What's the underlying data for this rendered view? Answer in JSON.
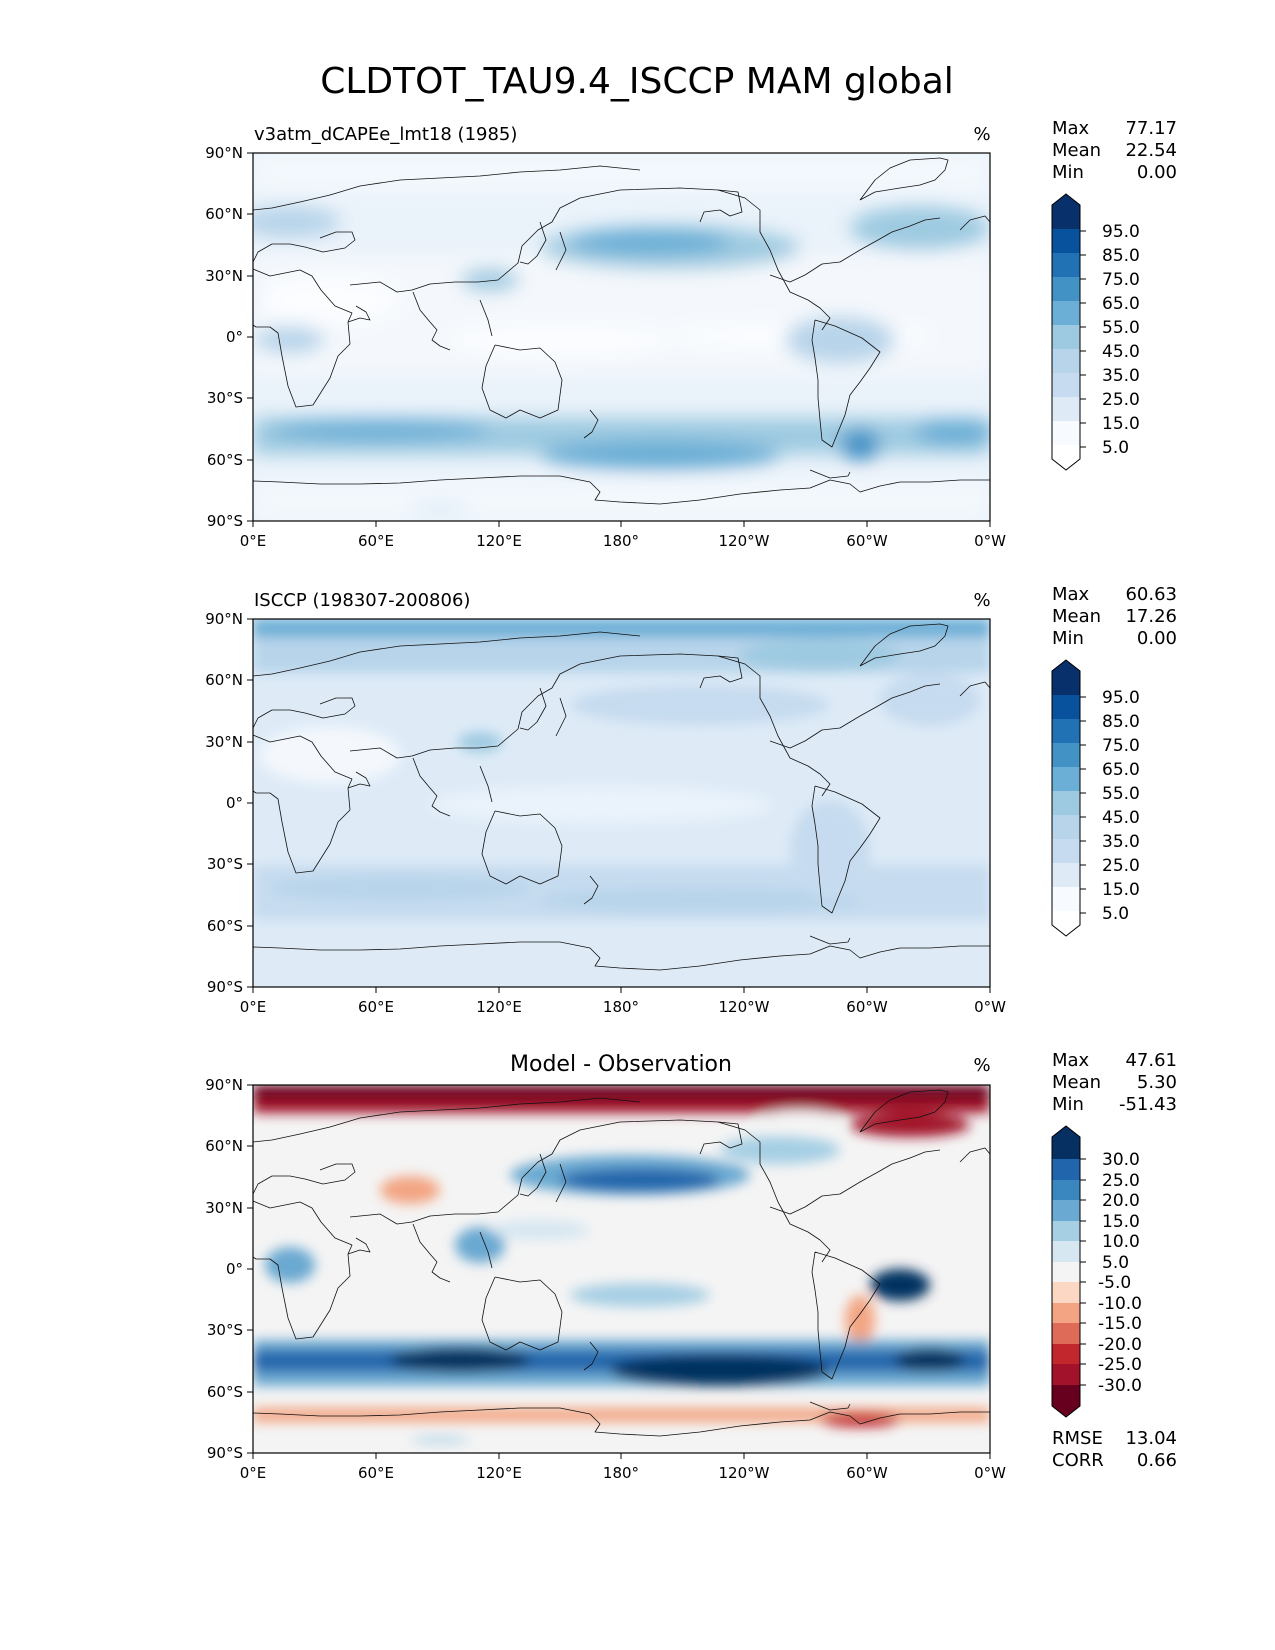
{
  "figure": {
    "title": "CLDTOT_TAU9.4_ISCCP MAM global"
  },
  "axes": {
    "lat_ticks": [
      "90°N",
      "60°N",
      "30°N",
      "0°",
      "30°S",
      "60°S",
      "90°S"
    ],
    "lon_ticks": [
      "0°E",
      "60°E",
      "120°E",
      "180°",
      "120°W",
      "60°W",
      "0°W"
    ]
  },
  "panels": [
    {
      "title_left": "v3atm_dCAPEe_lmt18 (1985)",
      "title_center": "",
      "units": "%",
      "stats": [
        {
          "label": "Max",
          "value": "77.17"
        },
        {
          "label": "Mean",
          "value": "22.54"
        },
        {
          "label": "Min",
          "value": "0.00"
        }
      ],
      "colorbar_labels": [
        "95.0",
        "85.0",
        "75.0",
        "65.0",
        "55.0",
        "45.0",
        "35.0",
        "25.0",
        "15.0",
        "5.0"
      ],
      "colorbar_colors": [
        "#08306b",
        "#08519c",
        "#2171b5",
        "#4292c6",
        "#6baed6",
        "#9ecae1",
        "#b7d4ea",
        "#c6dbef",
        "#deebf7",
        "#f7fbff"
      ]
    },
    {
      "title_left": "ISCCP (198307-200806)",
      "title_center": "",
      "units": "%",
      "stats": [
        {
          "label": "Max",
          "value": "60.63"
        },
        {
          "label": "Mean",
          "value": "17.26"
        },
        {
          "label": "Min",
          "value": "0.00"
        }
      ],
      "colorbar_labels": [
        "95.0",
        "85.0",
        "75.0",
        "65.0",
        "55.0",
        "45.0",
        "35.0",
        "25.0",
        "15.0",
        "5.0"
      ],
      "colorbar_colors": [
        "#08306b",
        "#08519c",
        "#2171b5",
        "#4292c6",
        "#6baed6",
        "#9ecae1",
        "#b7d4ea",
        "#c6dbef",
        "#deebf7",
        "#f7fbff"
      ]
    },
    {
      "title_left": "",
      "title_center": "Model - Observation",
      "units": "%",
      "stats": [
        {
          "label": "Max",
          "value": "47.61"
        },
        {
          "label": "Mean",
          "value": "5.30"
        },
        {
          "label": "Min",
          "value": "-51.43"
        }
      ],
      "colorbar_labels": [
        "30.0",
        "25.0",
        "20.0",
        "15.0",
        "10.0",
        "5.0",
        "-5.0",
        "-10.0",
        "-15.0",
        "-20.0",
        "-25.0",
        "-30.0"
      ],
      "colorbar_colors": [
        "#053061",
        "#2166ac",
        "#3a87c0",
        "#6aa9d1",
        "#a6cfe4",
        "#d6e7f1",
        "#f4f4f4",
        "#fbd7c4",
        "#f3a583",
        "#dd6b57",
        "#c1272d",
        "#a2122a",
        "#67001f"
      ],
      "footer_stats": [
        {
          "label": "RMSE",
          "value": "13.04"
        },
        {
          "label": "CORR",
          "value": "0.66"
        }
      ]
    }
  ]
}
